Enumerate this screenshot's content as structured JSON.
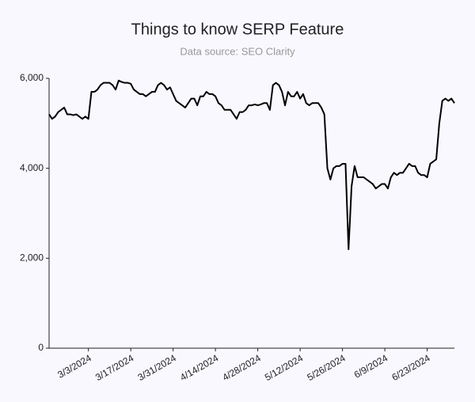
{
  "chart_data": {
    "type": "line",
    "title": "Things to know SERP Feature",
    "subtitle": "Data source: SEO Clarity",
    "x": [
      "2/19/2024",
      "2/20/2024",
      "2/21/2024",
      "2/22/2024",
      "2/23/2024",
      "2/24/2024",
      "2/25/2024",
      "2/26/2024",
      "2/27/2024",
      "2/28/2024",
      "2/29/2024",
      "3/1/2024",
      "3/2/2024",
      "3/3/2024",
      "3/4/2024",
      "3/5/2024",
      "3/6/2024",
      "3/7/2024",
      "3/8/2024",
      "3/9/2024",
      "3/10/2024",
      "3/11/2024",
      "3/12/2024",
      "3/13/2024",
      "3/14/2024",
      "3/15/2024",
      "3/16/2024",
      "3/17/2024",
      "3/18/2024",
      "3/19/2024",
      "3/20/2024",
      "3/21/2024",
      "3/22/2024",
      "3/23/2024",
      "3/24/2024",
      "3/25/2024",
      "3/26/2024",
      "3/27/2024",
      "3/28/2024",
      "3/29/2024",
      "3/30/2024",
      "3/31/2024",
      "4/1/2024",
      "4/2/2024",
      "4/3/2024",
      "4/4/2024",
      "4/5/2024",
      "4/6/2024",
      "4/7/2024",
      "4/8/2024",
      "4/9/2024",
      "4/10/2024",
      "4/11/2024",
      "4/12/2024",
      "4/13/2024",
      "4/14/2024",
      "4/15/2024",
      "4/16/2024",
      "4/17/2024",
      "4/18/2024",
      "4/19/2024",
      "4/20/2024",
      "4/21/2024",
      "4/22/2024",
      "4/23/2024",
      "4/24/2024",
      "4/25/2024",
      "4/26/2024",
      "4/27/2024",
      "4/28/2024",
      "4/29/2024",
      "4/30/2024",
      "5/1/2024",
      "5/2/2024",
      "5/3/2024",
      "5/4/2024",
      "5/5/2024",
      "5/6/2024",
      "5/7/2024",
      "5/8/2024",
      "5/9/2024",
      "5/10/2024",
      "5/11/2024",
      "5/12/2024",
      "5/13/2024",
      "5/14/2024",
      "5/15/2024",
      "5/16/2024",
      "5/17/2024",
      "5/18/2024",
      "5/19/2024",
      "5/20/2024",
      "5/21/2024",
      "5/22/2024",
      "5/23/2024",
      "5/24/2024",
      "5/25/2024",
      "5/26/2024",
      "5/27/2024",
      "5/28/2024",
      "5/29/2024",
      "5/30/2024",
      "5/31/2024",
      "6/1/2024",
      "6/2/2024",
      "6/3/2024",
      "6/4/2024",
      "6/5/2024",
      "6/6/2024",
      "6/7/2024",
      "6/8/2024",
      "6/9/2024",
      "6/10/2024",
      "6/11/2024",
      "6/12/2024",
      "6/13/2024",
      "6/14/2024",
      "6/15/2024",
      "6/16/2024",
      "6/17/2024",
      "6/18/2024",
      "6/19/2024",
      "6/20/2024",
      "6/21/2024",
      "6/22/2024",
      "6/23/2024",
      "6/24/2024",
      "6/25/2024",
      "6/26/2024",
      "6/27/2024",
      "6/28/2024",
      "6/29/2024",
      "6/30/2024",
      "7/1/2024",
      "7/2/2024"
    ],
    "values": [
      5200,
      5100,
      5150,
      5250,
      5300,
      5350,
      5200,
      5200,
      5180,
      5200,
      5150,
      5100,
      5150,
      5100,
      5700,
      5700,
      5750,
      5850,
      5900,
      5900,
      5900,
      5850,
      5750,
      5950,
      5920,
      5900,
      5900,
      5880,
      5750,
      5700,
      5650,
      5650,
      5600,
      5650,
      5700,
      5700,
      5850,
      5900,
      5850,
      5750,
      5800,
      5650,
      5500,
      5450,
      5400,
      5350,
      5450,
      5550,
      5550,
      5400,
      5600,
      5600,
      5700,
      5650,
      5650,
      5600,
      5450,
      5400,
      5300,
      5300,
      5300,
      5200,
      5100,
      5250,
      5250,
      5300,
      5400,
      5400,
      5420,
      5400,
      5420,
      5450,
      5450,
      5300,
      5850,
      5900,
      5850,
      5700,
      5400,
      5700,
      5600,
      5600,
      5700,
      5550,
      5650,
      5450,
      5400,
      5450,
      5450,
      5450,
      5350,
      5200,
      4000,
      3750,
      4000,
      4050,
      4050,
      4100,
      4100,
      2200,
      3600,
      4050,
      3800,
      3800,
      3800,
      3750,
      3700,
      3650,
      3550,
      3600,
      3650,
      3650,
      3550,
      3800,
      3900,
      3850,
      3900,
      3900,
      4000,
      4100,
      4050,
      4050,
      3900,
      3850,
      3850,
      3800,
      4100,
      4150,
      4200,
      5000,
      5500,
      5550,
      5500,
      5550,
      5450
    ],
    "color": "#000000",
    "xlim": [
      "2/19/2024",
      "7/2/2024"
    ],
    "xticks": [
      "3/3/2024",
      "3/17/2024",
      "3/31/2024",
      "4/14/2024",
      "4/28/2024",
      "5/12/2024",
      "5/26/2024",
      "6/9/2024",
      "6/23/2024"
    ],
    "ylim": [
      0,
      6000
    ],
    "yticks": [
      0,
      {
        "value": 2000,
        "label": "2,000"
      },
      {
        "value": 4000,
        "label": "4,000"
      },
      {
        "value": 6000,
        "label": "6,000"
      }
    ],
    "grid": false
  }
}
